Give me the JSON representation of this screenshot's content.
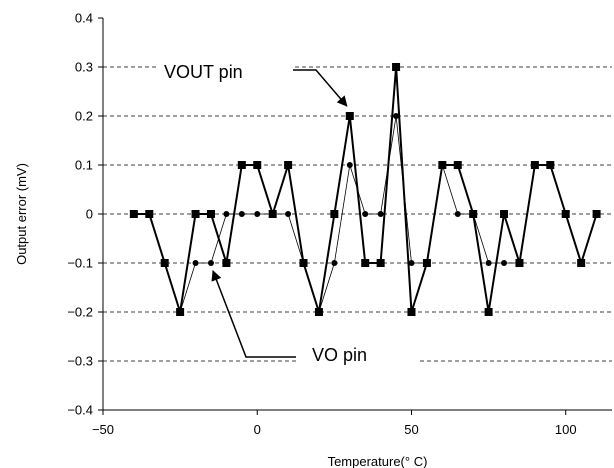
{
  "chart_data": {
    "type": "line",
    "title": "",
    "xlabel": "Temperature(° C)",
    "ylabel": "Output error (mV)",
    "xlim": [
      -50,
      115
    ],
    "ylim": [
      -0.4,
      0.4
    ],
    "xticks": [
      -50,
      0,
      50,
      100
    ],
    "xtick_labels": [
      "−50",
      "0",
      "50",
      "100"
    ],
    "yticks": [
      -0.4,
      -0.3,
      -0.2,
      -0.1,
      0,
      0.1,
      0.2,
      0.3,
      0.4
    ],
    "ytick_labels": [
      "−0.4",
      "−0.3",
      "−0.2",
      "−0.1",
      "0",
      "0.1",
      "0.2",
      "0.3",
      "0.4"
    ],
    "grid": "horizontal-dashed",
    "legend": "none",
    "x": [
      -40,
      -35,
      -30,
      -25,
      -20,
      -15,
      -10,
      -5,
      0,
      5,
      10,
      15,
      20,
      25,
      30,
      35,
      40,
      45,
      50,
      55,
      60,
      65,
      70,
      75,
      80,
      85,
      90,
      95,
      100,
      105,
      110
    ],
    "series": [
      {
        "name": "VOUT pin",
        "marker": "square",
        "values": [
          0,
          0,
          -0.1,
          -0.2,
          0,
          0,
          -0.1,
          0.1,
          0.1,
          0,
          0.1,
          -0.1,
          -0.2,
          0,
          0.2,
          -0.1,
          -0.1,
          0.3,
          -0.2,
          -0.1,
          0.1,
          0.1,
          0,
          -0.2,
          0,
          -0.1,
          0.1,
          0.1,
          0,
          -0.1,
          0
        ]
      },
      {
        "name": "VO pin",
        "marker": "circle",
        "values": [
          0,
          0,
          -0.1,
          -0.2,
          -0.1,
          -0.1,
          0,
          0,
          0,
          0,
          0,
          -0.1,
          -0.2,
          -0.1,
          0.1,
          0,
          0,
          0.2,
          -0.1,
          -0.1,
          0.1,
          0,
          0,
          -0.1,
          -0.1,
          -0.1,
          0.1,
          0.1,
          0,
          -0.1,
          0
        ]
      }
    ],
    "annotations": [
      {
        "text": "VOUT pin",
        "series": "VOUT pin",
        "x": 30,
        "y": 0.2
      },
      {
        "text": "VO pin",
        "series": "VO pin",
        "x": -15,
        "y": -0.1
      }
    ]
  },
  "colors": {
    "line": "#000000",
    "grid": "#000000",
    "background": "#ffffff"
  }
}
